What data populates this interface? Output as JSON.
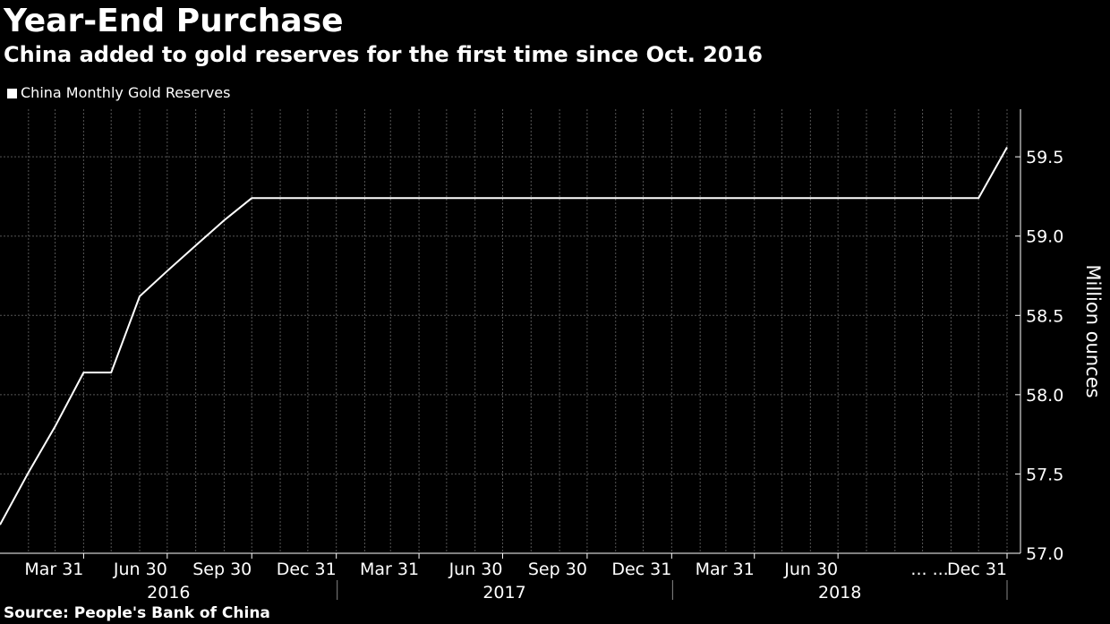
{
  "chart_data": {
    "type": "line",
    "title": "Year-End Purchase",
    "subtitle": "China added to gold reserves for the first time since Oct. 2016",
    "source": "Source: People's Bank of China",
    "ylabel": "Million ounces",
    "ylim": [
      57.0,
      59.8
    ],
    "yticks": [
      57.0,
      57.5,
      58.0,
      58.5,
      59.0,
      59.5
    ],
    "ytick_labels": [
      "57.0",
      "57.5",
      "58.0",
      "58.5",
      "59.0",
      "59.5"
    ],
    "grid": true,
    "legend_position": "top-left",
    "colors": {
      "background": "#000000",
      "line": "#ffffff",
      "grid": "#555555"
    },
    "x_range": [
      "2015-12-31",
      "2018-12-31"
    ],
    "xticks": [
      {
        "date": "2016-03-31",
        "label": "Mar 31"
      },
      {
        "date": "2016-06-30",
        "label": "Jun 30"
      },
      {
        "date": "2016-09-30",
        "label": "Sep 30"
      },
      {
        "date": "2016-12-31",
        "label": "Dec 31"
      },
      {
        "date": "2017-03-31",
        "label": "Mar 31"
      },
      {
        "date": "2017-06-30",
        "label": "Jun 30"
      },
      {
        "date": "2017-09-30",
        "label": "Sep 30"
      },
      {
        "date": "2017-12-31",
        "label": "Dec 31"
      },
      {
        "date": "2018-03-31",
        "label": "Mar 31"
      },
      {
        "date": "2018-06-30",
        "label": "Jun 30"
      },
      {
        "date": "2018-12-31",
        "label": "Dec 31"
      }
    ],
    "x_ellipsis": "... ...",
    "years": [
      {
        "label": "2016",
        "start": "2016-01-01",
        "end": "2016-12-31"
      },
      {
        "label": "2017",
        "start": "2017-01-01",
        "end": "2017-12-31"
      },
      {
        "label": "2018",
        "start": "2018-01-01",
        "end": "2018-12-31"
      }
    ],
    "series": [
      {
        "name": "China Monthly Gold Reserves",
        "x": [
          "2015-12-31",
          "2016-01-31",
          "2016-02-29",
          "2016-03-31",
          "2016-04-30",
          "2016-05-31",
          "2016-06-30",
          "2016-07-31",
          "2016-08-31",
          "2016-09-30",
          "2016-10-31",
          "2016-11-30",
          "2016-12-31",
          "2017-01-31",
          "2017-02-28",
          "2017-03-31",
          "2017-04-30",
          "2017-05-31",
          "2017-06-30",
          "2017-07-31",
          "2017-08-31",
          "2017-09-30",
          "2017-10-31",
          "2017-11-30",
          "2017-12-31",
          "2018-01-31",
          "2018-02-28",
          "2018-03-31",
          "2018-04-30",
          "2018-05-31",
          "2018-06-30",
          "2018-07-31",
          "2018-08-31",
          "2018-09-30",
          "2018-10-31",
          "2018-11-30",
          "2018-12-31"
        ],
        "y": [
          57.18,
          57.51,
          57.8,
          58.14,
          58.14,
          58.62,
          58.78,
          58.94,
          59.1,
          59.24,
          59.24,
          59.24,
          59.24,
          59.24,
          59.24,
          59.24,
          59.24,
          59.24,
          59.24,
          59.24,
          59.24,
          59.24,
          59.24,
          59.24,
          59.24,
          59.24,
          59.24,
          59.24,
          59.24,
          59.24,
          59.24,
          59.24,
          59.24,
          59.24,
          59.24,
          59.24,
          59.56
        ]
      }
    ]
  }
}
